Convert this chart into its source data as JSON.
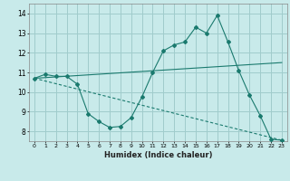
{
  "xlabel": "Humidex (Indice chaleur)",
  "background_color": "#c8eaea",
  "grid_color": "#a0cccc",
  "line_color": "#1a7a6e",
  "xlim": [
    -0.5,
    23.5
  ],
  "ylim": [
    7.5,
    14.5
  ],
  "xticks": [
    0,
    1,
    2,
    3,
    4,
    5,
    6,
    7,
    8,
    9,
    10,
    11,
    12,
    13,
    14,
    15,
    16,
    17,
    18,
    19,
    20,
    21,
    22,
    23
  ],
  "yticks": [
    8,
    9,
    10,
    11,
    12,
    13,
    14
  ],
  "series1_x": [
    0,
    1,
    2,
    3,
    4,
    5,
    6,
    7,
    8,
    9,
    10,
    11,
    12,
    13,
    14,
    15,
    16,
    17,
    18,
    19,
    20,
    21,
    22,
    23
  ],
  "series1_y": [
    10.7,
    10.9,
    10.8,
    10.8,
    10.4,
    8.9,
    8.5,
    8.2,
    8.25,
    8.7,
    9.75,
    11.0,
    12.1,
    12.4,
    12.55,
    13.3,
    13.0,
    13.9,
    12.55,
    11.1,
    9.85,
    8.8,
    7.6,
    7.55
  ],
  "series2_x": [
    0,
    23
  ],
  "series2_y": [
    10.7,
    7.55
  ],
  "series3_x": [
    0,
    23
  ],
  "series3_y": [
    10.7,
    11.5
  ],
  "figsize": [
    3.2,
    2.0
  ],
  "dpi": 100
}
